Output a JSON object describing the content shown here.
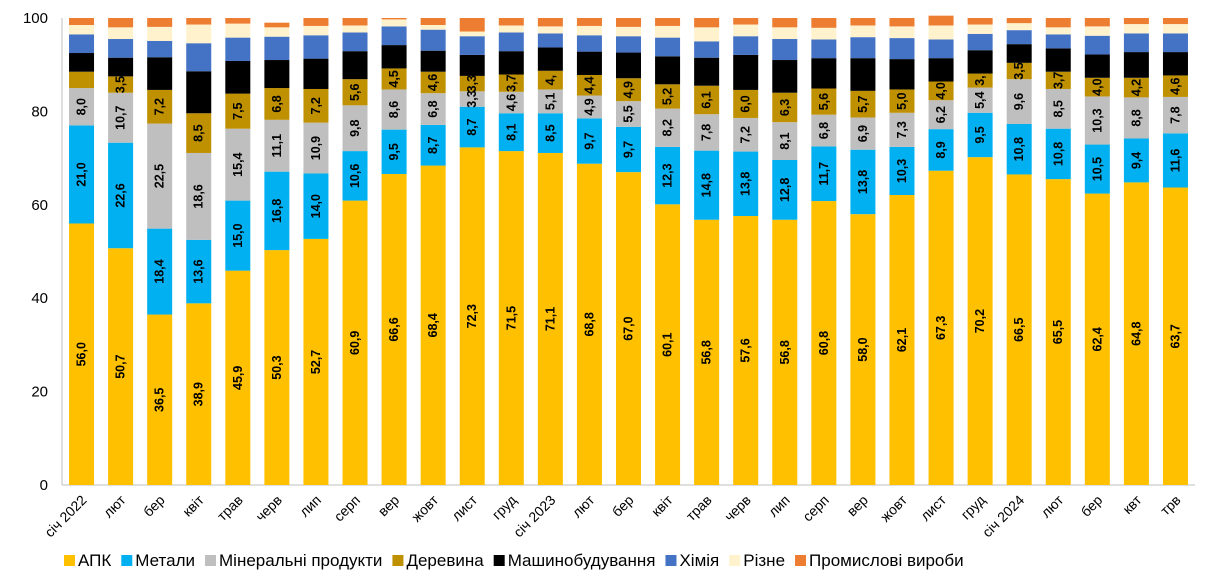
{
  "chart_data": {
    "type": "bar",
    "stacked": true,
    "ylim": [
      0,
      100
    ],
    "yticks": [
      0,
      20,
      40,
      60,
      80,
      100
    ],
    "legend_position": "bottom",
    "grid": false,
    "categories": [
      "січ 2022",
      "лют",
      "бер",
      "квіт",
      "трав",
      "черв",
      "лип",
      "серп",
      "вер",
      "жовт",
      "лист",
      "груд",
      "січ 2023",
      "лют",
      "бер",
      "квіт",
      "трав",
      "черв",
      "лип",
      "серп",
      "вер",
      "жовт",
      "лист",
      "груд",
      "січ 2024",
      "лют",
      "бер",
      "квт",
      "трв"
    ],
    "series": [
      {
        "name": "АПК",
        "color": "#FFC000",
        "values": [
          56.0,
          50.7,
          36.5,
          38.9,
          45.9,
          50.3,
          52.7,
          60.9,
          66.6,
          68.4,
          72.3,
          71.5,
          71.1,
          68.8,
          67.0,
          60.1,
          56.8,
          57.6,
          56.8,
          60.8,
          58.0,
          62.1,
          67.3,
          70.2,
          66.5,
          65.5,
          62.4,
          64.8,
          63.7
        ],
        "labels": [
          "56,0",
          "50,7",
          "36,5",
          "38,9",
          "45,9",
          "50,3",
          "52,7",
          "60,9",
          "66,6",
          "68,4",
          "72,3",
          "71,5",
          "71,1",
          "68,8",
          "67,0",
          "60,1",
          "56,8",
          "57,6",
          "56,8",
          "60,8",
          "58,0",
          "62,1",
          "67,3",
          "70,2",
          "66,5",
          "65,5",
          "62,4",
          "64,8",
          "63,7"
        ]
      },
      {
        "name": "Метали",
        "color": "#00B0F0",
        "values": [
          21.0,
          22.6,
          18.4,
          13.6,
          15.0,
          16.8,
          14.0,
          10.6,
          9.5,
          8.7,
          8.7,
          8.1,
          8.5,
          9.7,
          9.7,
          12.3,
          14.8,
          13.8,
          12.8,
          11.7,
          13.8,
          10.3,
          8.9,
          9.5,
          10.8,
          10.8,
          10.5,
          9.4,
          11.6
        ],
        "labels": [
          "21,0",
          "22,6",
          "18,4",
          "13,6",
          "15,0",
          "16,8",
          "14,0",
          "10,6",
          "9,5",
          "8,7",
          "8,7",
          "8,1",
          "8,5",
          "9,7",
          "9,7",
          "12,3",
          "14,8",
          "13,8",
          "12,8",
          "11,7",
          "13,8",
          "10,3",
          "8,9",
          "9,5",
          "10,8",
          "10,8",
          "10,5",
          "9,4",
          "11,6"
        ]
      },
      {
        "name": "Мінеральні продукти",
        "color": "#BFBFBF",
        "values": [
          8.0,
          10.7,
          22.5,
          18.6,
          15.4,
          11.1,
          10.9,
          9.8,
          8.6,
          6.8,
          3.3,
          4.6,
          5.1,
          4.9,
          5.5,
          8.2,
          7.8,
          7.2,
          8.1,
          6.8,
          6.9,
          7.3,
          6.2,
          5.4,
          9.6,
          8.5,
          10.3,
          8.8,
          7.8
        ],
        "labels": [
          "8,0",
          "10,7",
          "22,5",
          "18,6",
          "15,4",
          "11,1",
          "10,9",
          "9,8",
          "8,6",
          "6,8",
          "3,3",
          "4,6",
          "5,1",
          "4,9",
          "5,5",
          "8,2",
          "7,8",
          "7,2",
          "8,1",
          "6,8",
          "6,9",
          "7,3",
          "6,2",
          "5,4",
          "9,6",
          "8,5",
          "10,3",
          "8,8",
          "7,8"
        ]
      },
      {
        "name": "Деревина",
        "color": "#BF9000",
        "values": [
          3.5,
          3.5,
          7.2,
          8.5,
          7.5,
          6.8,
          7.2,
          5.6,
          4.5,
          4.6,
          3.3,
          3.7,
          4.0,
          4.4,
          4.9,
          5.2,
          6.1,
          6.0,
          6.3,
          5.6,
          5.7,
          5.0,
          4.0,
          3.0,
          3.5,
          3.7,
          4.0,
          4.2,
          4.6
        ],
        "labels": [
          "",
          "3,5",
          "7,2",
          "8,5",
          "7,5",
          "6,8",
          "7,2",
          "5,6",
          "4,5",
          "4,6",
          "3,3",
          "3,7",
          "4,",
          "4,4",
          "4,9",
          "5,2",
          "6,1",
          "6,0",
          "6,3",
          "5,6",
          "5,7",
          "5,0",
          "4,0",
          "3,",
          "3,5",
          "3,7",
          "4,0",
          "4,2",
          "4,6"
        ]
      },
      {
        "name": "Машинобудування",
        "color": "#000000",
        "values": [
          4.0,
          4.0,
          7.0,
          9.0,
          7.0,
          6.0,
          6.5,
          6.0,
          5.0,
          4.5,
          4.5,
          5.0,
          5.0,
          5.0,
          5.5,
          6.0,
          6.0,
          7.5,
          7.0,
          6.5,
          7.0,
          6.5,
          5.0,
          5.0,
          4.0,
          5.0,
          5.0,
          5.5,
          5.0
        ],
        "labels": []
      },
      {
        "name": "Хімія",
        "color": "#4472C4",
        "values": [
          4.0,
          4.0,
          3.5,
          6.0,
          5.0,
          5.0,
          5.0,
          4.0,
          4.0,
          4.5,
          4.0,
          4.0,
          3.0,
          3.5,
          3.5,
          4.0,
          3.5,
          4.0,
          4.5,
          4.0,
          4.5,
          4.5,
          4.0,
          3.5,
          3.0,
          3.0,
          4.0,
          4.0,
          4.0
        ],
        "labels": []
      },
      {
        "name": "Різне",
        "color": "#FFF2CC",
        "values": [
          2.0,
          2.5,
          3.0,
          4.0,
          3.0,
          2.0,
          2.0,
          1.5,
          1.5,
          1.0,
          1.0,
          1.5,
          1.5,
          2.0,
          2.0,
          2.5,
          3.0,
          2.5,
          2.5,
          2.5,
          2.5,
          2.5,
          3.0,
          2.0,
          1.5,
          1.5,
          2.0,
          2.0,
          2.0
        ],
        "labels": []
      },
      {
        "name": "Промислові вироби",
        "color": "#ED7D31",
        "values": [
          1.5,
          2.0,
          1.9,
          1.4,
          1.2,
          1.0,
          1.7,
          1.6,
          0.3,
          1.5,
          2.9,
          1.6,
          1.8,
          1.7,
          1.9,
          1.7,
          2.0,
          1.4,
          2.0,
          2.1,
          1.6,
          1.8,
          2.1,
          1.4,
          1.1,
          2.0,
          1.8,
          1.3,
          1.3
        ],
        "labels": []
      }
    ]
  }
}
